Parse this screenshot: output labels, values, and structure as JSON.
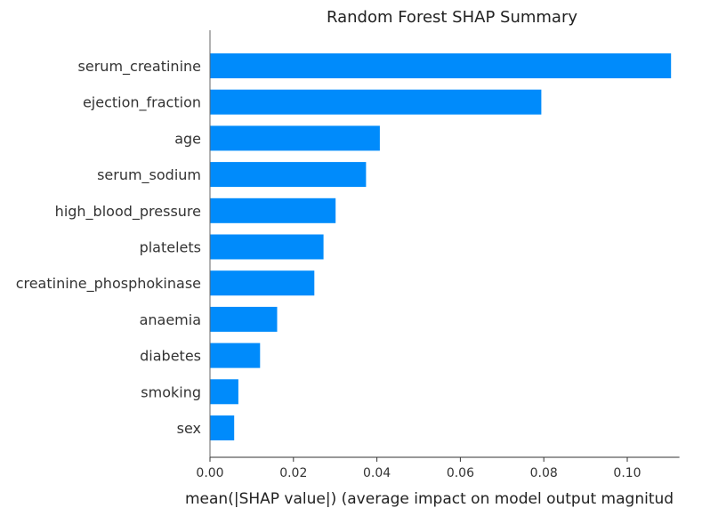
{
  "chart_data": {
    "type": "bar",
    "orientation": "horizontal",
    "title": "Random Forest SHAP Summary",
    "xlabel": "mean(|SHAP value|) (average impact on model output magnitud",
    "ylabel": "",
    "categories": [
      "serum_creatinine",
      "ejection_fraction",
      "age",
      "serum_sodium",
      "high_blood_pressure",
      "platelets",
      "creatinine_phosphokinase",
      "anaemia",
      "diabetes",
      "smoking",
      "sex"
    ],
    "values": [
      0.1105,
      0.0794,
      0.0407,
      0.0374,
      0.0301,
      0.0272,
      0.025,
      0.0161,
      0.012,
      0.0068,
      0.0058
    ],
    "xlim": [
      0,
      0.1125
    ],
    "xticks": [
      "0.00",
      "0.02",
      "0.04",
      "0.06",
      "0.08",
      "0.10"
    ],
    "bar_color": "#008bfb",
    "grid": false,
    "legend": "none"
  }
}
